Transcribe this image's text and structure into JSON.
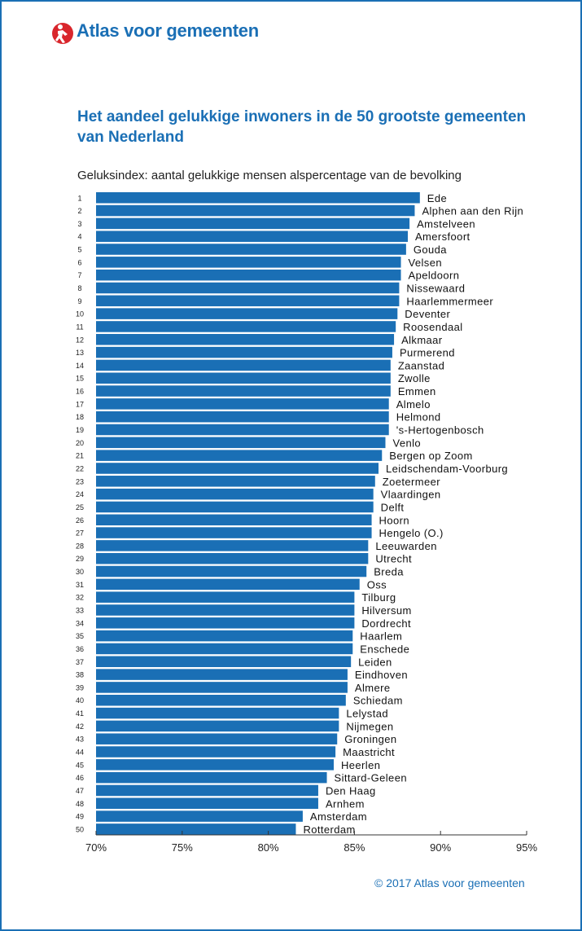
{
  "header": {
    "logo_text": "Atlas voor gemeenten",
    "logo_icon": "atlas-figure-logo-icon"
  },
  "title": "Het aandeel gelukkige inwoners in de 50 grootste gemeenten van Nederland",
  "subtitle": "Geluksindex: aantal gelukkige mensen alspercentage van de bevolking",
  "copyright": "© 2017 Atlas voor gemeenten",
  "colors": {
    "brand": "#1a6fb5",
    "bar": "#1a6fb5",
    "logo_red": "#d9262c"
  },
  "chart_data": {
    "type": "bar",
    "orientation": "horizontal",
    "xlim": [
      70,
      95
    ],
    "xticks": [
      70,
      75,
      80,
      85,
      90,
      95
    ],
    "xtick_labels": [
      "70%",
      "75%",
      "80%",
      "85%",
      "90%",
      "95%"
    ],
    "xlabel": "",
    "ylabel": "",
    "grid": false,
    "legend": "none",
    "ranks": [
      1,
      2,
      3,
      4,
      5,
      6,
      7,
      8,
      9,
      10,
      11,
      12,
      13,
      14,
      15,
      16,
      17,
      18,
      19,
      20,
      21,
      22,
      23,
      24,
      25,
      26,
      27,
      28,
      29,
      30,
      31,
      32,
      33,
      34,
      35,
      36,
      37,
      38,
      39,
      40,
      41,
      42,
      43,
      44,
      45,
      46,
      47,
      48,
      49,
      50
    ],
    "categories": [
      "Ede",
      "Alphen aan den Rijn",
      "Amstelveen",
      "Amersfoort",
      "Gouda",
      "Velsen",
      "Apeldoorn",
      "Nissewaard",
      "Haarlemmermeer",
      "Deventer",
      "Roosendaal",
      "Alkmaar",
      "Purmerend",
      "Zaanstad",
      "Zwolle",
      "Emmen",
      "Almelo",
      "Helmond",
      "'s-Hertogenbosch",
      "Venlo",
      "Bergen op Zoom",
      "Leidschendam-Voorburg",
      "Zoetermeer",
      "Vlaardingen",
      "Delft",
      "Hoorn",
      "Hengelo (O.)",
      "Leeuwarden",
      "Utrecht",
      "Breda",
      "Oss",
      "Tilburg",
      "Hilversum",
      "Dordrecht",
      "Haarlem",
      "Enschede",
      "Leiden",
      "Eindhoven",
      "Almere",
      "Schiedam",
      "Lelystad",
      "Nijmegen",
      "Groningen",
      "Maastricht",
      "Heerlen",
      "Sittard-Geleen",
      "Den Haag",
      "Arnhem",
      "Amsterdam",
      "Rotterdam"
    ],
    "values": [
      88.8,
      88.5,
      88.2,
      88.1,
      88.0,
      87.7,
      87.7,
      87.6,
      87.6,
      87.5,
      87.4,
      87.3,
      87.2,
      87.1,
      87.1,
      87.1,
      87.0,
      87.0,
      87.0,
      86.8,
      86.6,
      86.4,
      86.2,
      86.1,
      86.1,
      86.0,
      86.0,
      85.8,
      85.8,
      85.7,
      85.3,
      85.0,
      85.0,
      85.0,
      84.9,
      84.9,
      84.8,
      84.6,
      84.6,
      84.5,
      84.1,
      84.1,
      84.0,
      83.9,
      83.8,
      83.4,
      82.9,
      82.9,
      82.0,
      81.6
    ]
  }
}
